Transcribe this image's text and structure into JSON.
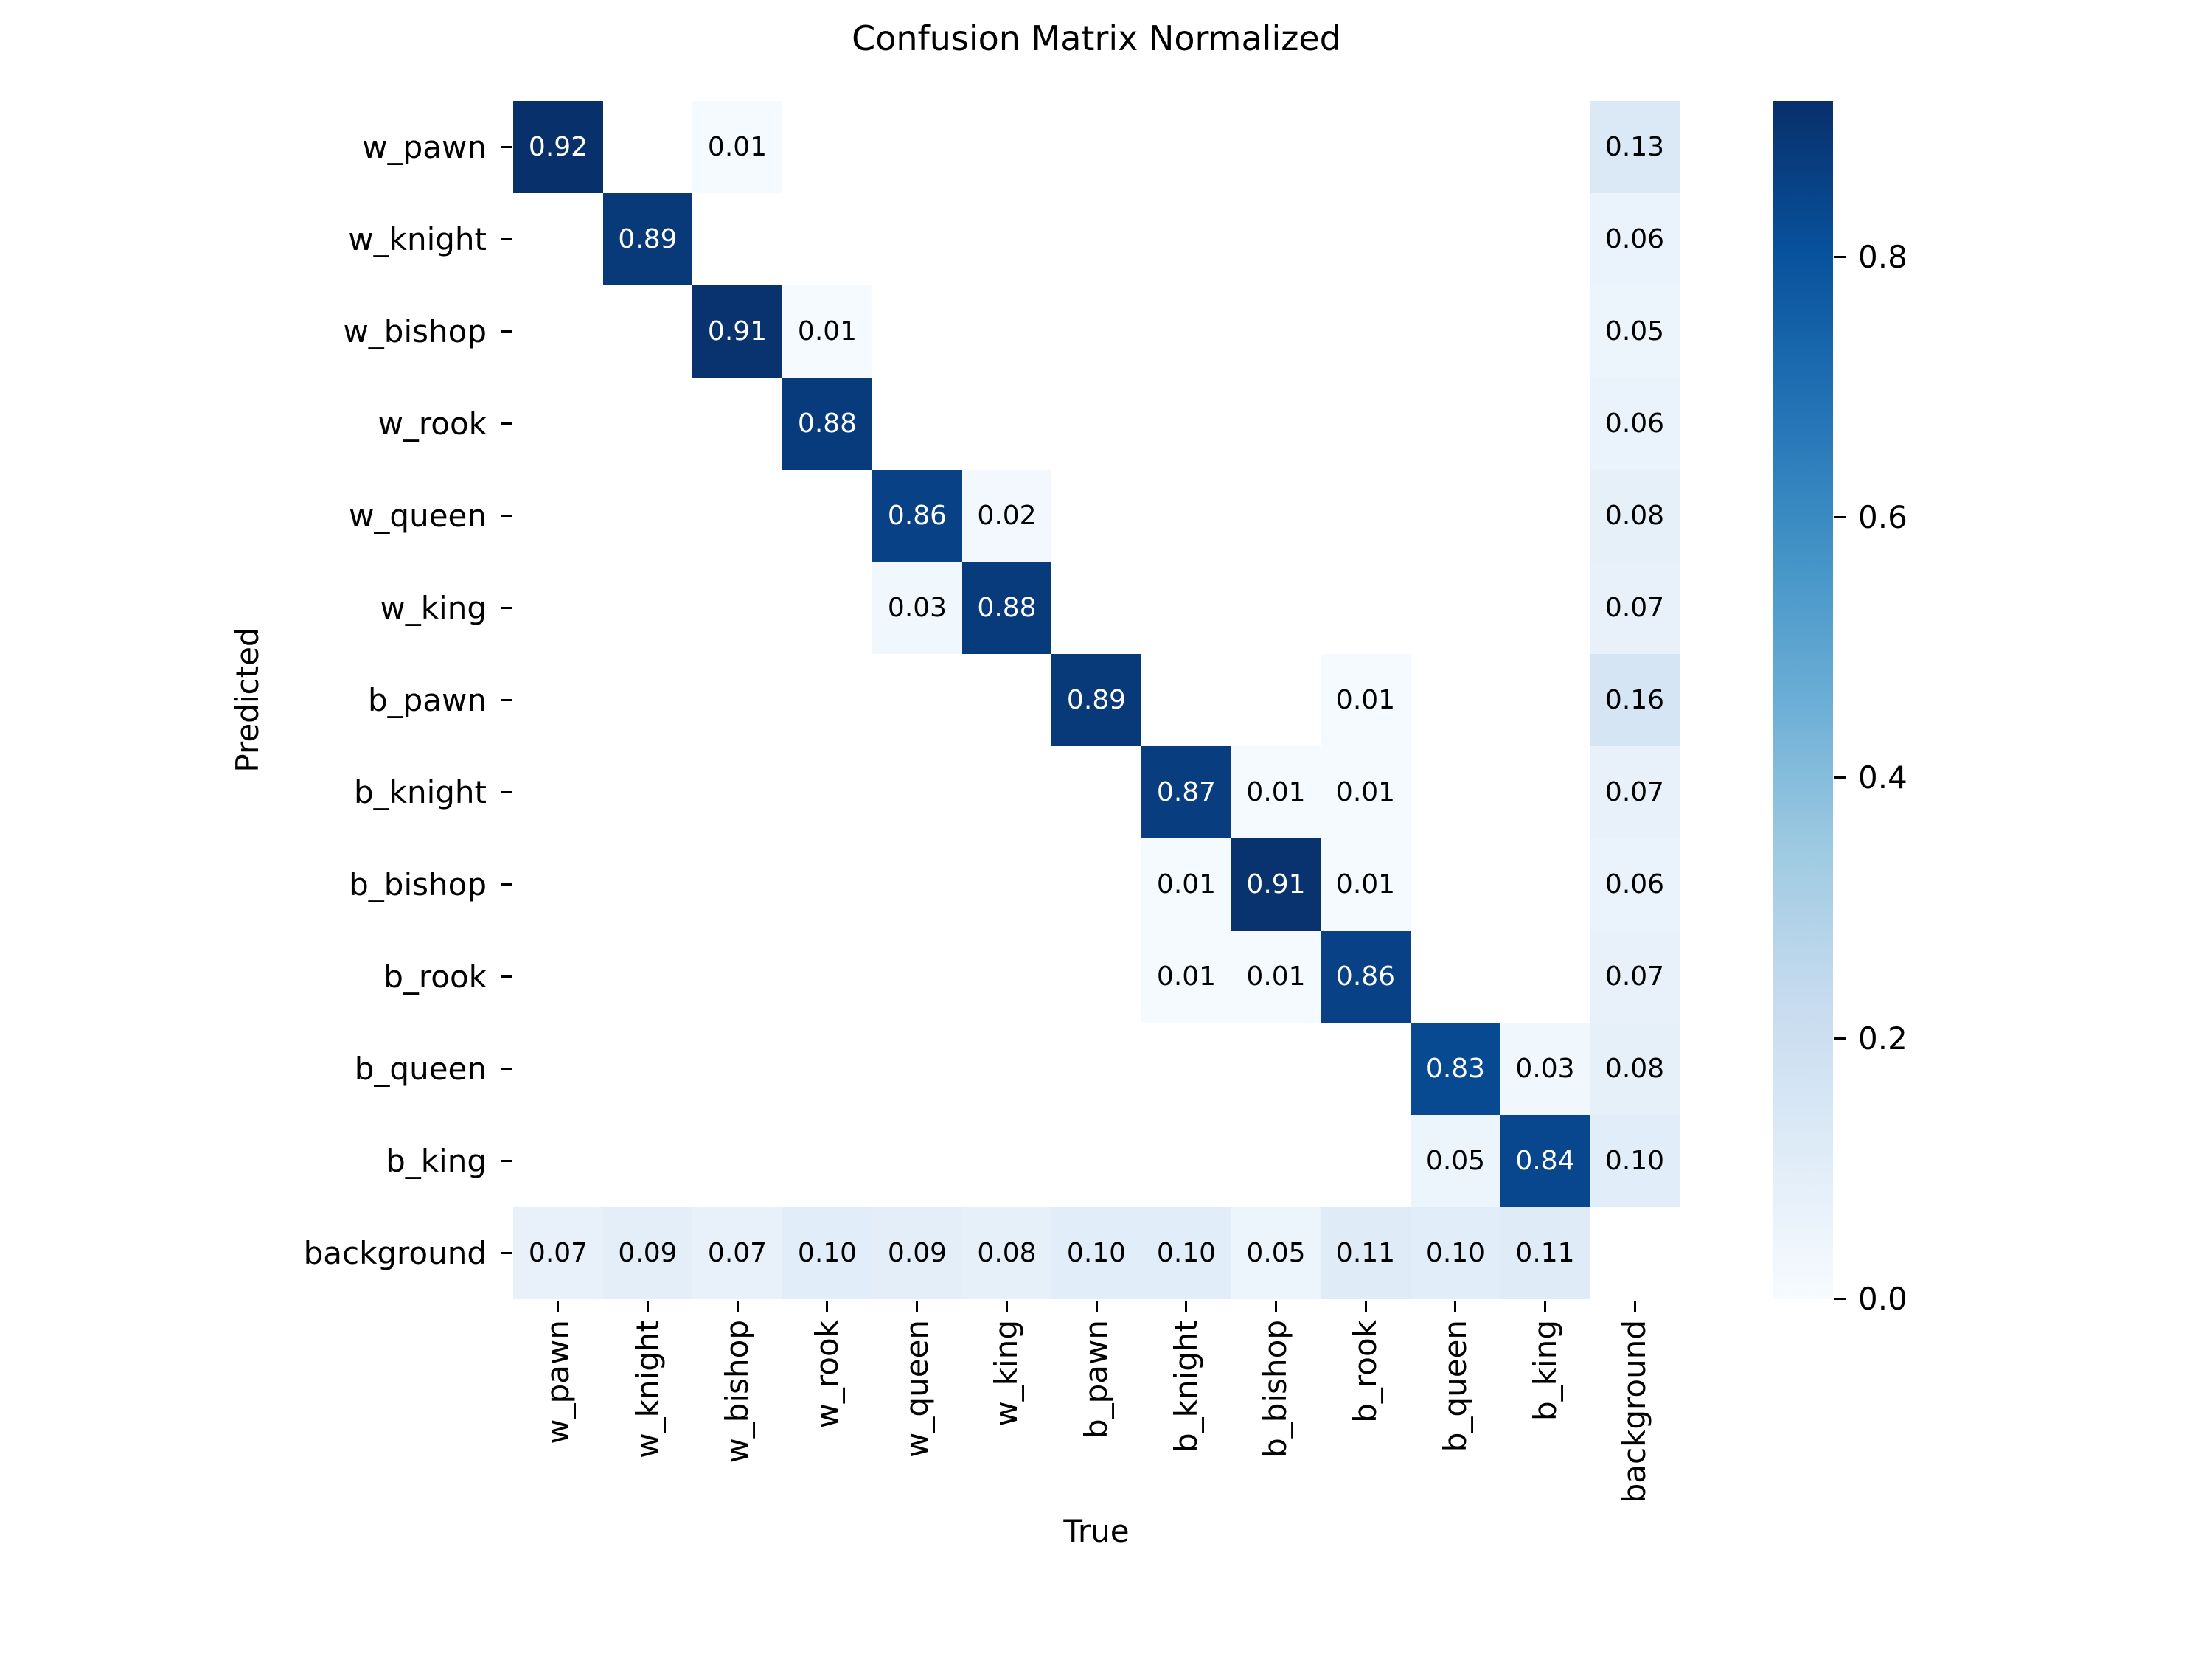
{
  "title": "Confusion Matrix Normalized",
  "chart_data": {
    "type": "heatmap",
    "title": "Confusion Matrix Normalized",
    "xlabel": "True",
    "ylabel": "Predicted",
    "categories": [
      "w_pawn",
      "w_knight",
      "w_bishop",
      "w_rook",
      "w_queen",
      "w_king",
      "b_pawn",
      "b_knight",
      "b_bishop",
      "b_rook",
      "b_queen",
      "b_king",
      "background"
    ],
    "rows_axis": "Predicted",
    "cols_axis": "True",
    "matrix": [
      [
        0.92,
        null,
        0.01,
        null,
        null,
        null,
        null,
        null,
        null,
        null,
        null,
        null,
        0.13
      ],
      [
        null,
        0.89,
        null,
        null,
        null,
        null,
        null,
        null,
        null,
        null,
        null,
        null,
        0.06
      ],
      [
        null,
        null,
        0.91,
        0.01,
        null,
        null,
        null,
        null,
        null,
        null,
        null,
        null,
        0.05
      ],
      [
        null,
        null,
        null,
        0.88,
        null,
        null,
        null,
        null,
        null,
        null,
        null,
        null,
        0.06
      ],
      [
        null,
        null,
        null,
        null,
        0.86,
        0.02,
        null,
        null,
        null,
        null,
        null,
        null,
        0.08
      ],
      [
        null,
        null,
        null,
        null,
        0.03,
        0.88,
        null,
        null,
        null,
        null,
        null,
        null,
        0.07
      ],
      [
        null,
        null,
        null,
        null,
        null,
        null,
        0.89,
        null,
        null,
        0.01,
        null,
        null,
        0.16
      ],
      [
        null,
        null,
        null,
        null,
        null,
        null,
        null,
        0.87,
        0.01,
        0.01,
        null,
        null,
        0.07
      ],
      [
        null,
        null,
        null,
        null,
        null,
        null,
        null,
        0.01,
        0.91,
        0.01,
        null,
        null,
        0.06
      ],
      [
        null,
        null,
        null,
        null,
        null,
        null,
        null,
        0.01,
        0.01,
        0.86,
        null,
        null,
        0.07
      ],
      [
        null,
        null,
        null,
        null,
        null,
        null,
        null,
        null,
        null,
        null,
        0.83,
        0.03,
        0.08
      ],
      [
        null,
        null,
        null,
        null,
        null,
        null,
        null,
        null,
        null,
        null,
        0.05,
        0.84,
        0.1
      ],
      [
        0.07,
        0.09,
        0.07,
        0.1,
        0.09,
        0.08,
        0.1,
        0.1,
        0.05,
        0.11,
        0.1,
        0.11,
        null
      ]
    ],
    "value_decimals": 2,
    "vmin": 0.0,
    "vmax": 0.92,
    "colormap": "Blues",
    "colormap_anchors": [
      [
        0.0,
        247,
        251,
        255
      ],
      [
        0.125,
        222,
        235,
        247
      ],
      [
        0.25,
        198,
        219,
        239
      ],
      [
        0.375,
        158,
        202,
        225
      ],
      [
        0.5,
        107,
        174,
        214
      ],
      [
        0.625,
        66,
        146,
        198
      ],
      [
        0.75,
        33,
        113,
        181
      ],
      [
        0.875,
        8,
        81,
        156
      ],
      [
        1.0,
        8,
        48,
        107
      ]
    ],
    "colorbar_ticks": [
      0.0,
      0.2,
      0.4,
      0.6,
      0.8
    ],
    "colorbar_tick_decimals": 1,
    "annotation_color_light": "#ffffff",
    "annotation_color_dark": "#000000",
    "empty_cell_color": "#ffffff",
    "tick_color": "#000000",
    "legend_position": "right",
    "grid": false
  }
}
